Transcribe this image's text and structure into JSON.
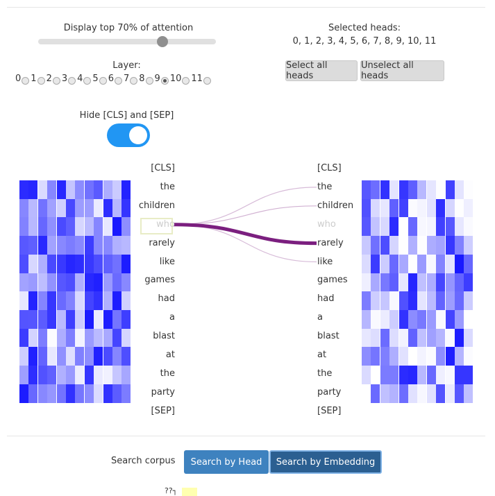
{
  "controls": {
    "threshold_label": "Display top 70% of attention",
    "threshold_value": 0.7,
    "layer_label": "Layer:",
    "layers": [
      "0",
      "1",
      "2",
      "3",
      "4",
      "5",
      "6",
      "7",
      "8",
      "9",
      "10",
      "11"
    ],
    "selected_layer": "9",
    "selected_heads_label": "Selected heads:",
    "selected_heads_value": "0, 1, 2, 3, 4, 5, 6, 7, 8, 9, 10, 11",
    "select_all_label": "Select all heads",
    "unselect_all_label": "Unselect all heads",
    "hide_special_label": "Hide [CLS] and [SEP]",
    "hide_special_on": true
  },
  "attention": {
    "left_tokens": [
      "[CLS]",
      "the",
      "children",
      "who",
      "rarely",
      "like",
      "games",
      "had",
      "a",
      "blast",
      "at",
      "the",
      "party",
      "[SEP]"
    ],
    "right_tokens": [
      "[CLS]",
      "the",
      "children",
      "who",
      "rarely",
      "like",
      "games",
      "had",
      "a",
      "blast",
      "at",
      "the",
      "party",
      "[SEP]"
    ],
    "selected_left_index": 3,
    "line_color": "#7b1f7f",
    "heatmap_color": "#1a1aff"
  },
  "footer": {
    "search_corpus_label": "Search corpus",
    "search_by_head_label": "Search by Head",
    "search_by_embedding_label": "Search by Embedding",
    "partial_label": "??┐"
  }
}
